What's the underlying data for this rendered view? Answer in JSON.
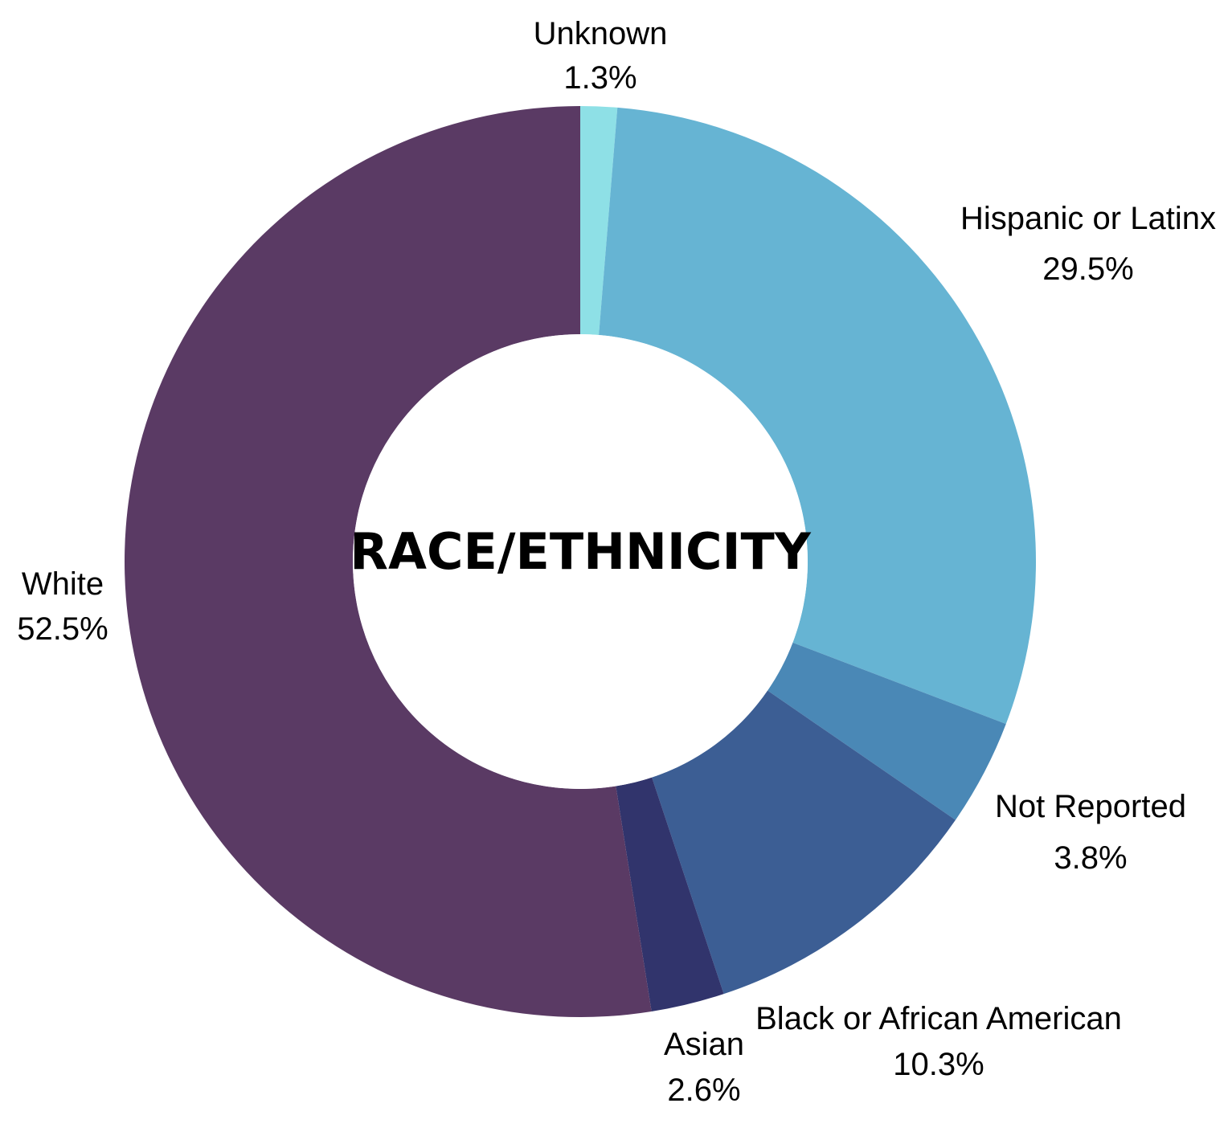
{
  "chart_data": {
    "type": "pie",
    "title": "RACE/ETHNICITY",
    "slices": [
      {
        "label": "Unknown",
        "value": 1.3,
        "value_label": "1.3%",
        "color": "#8ee0e6"
      },
      {
        "label": "Hispanic or Latinx",
        "value": 29.5,
        "value_label": "29.5%",
        "color": "#66b4d3"
      },
      {
        "label": "Not Reported",
        "value": 3.8,
        "value_label": "3.8%",
        "color": "#4a88b6"
      },
      {
        "label": "Black or African American",
        "value": 10.3,
        "value_label": "10.3%",
        "color": "#3c5e94"
      },
      {
        "label": "Asian",
        "value": 2.6,
        "value_label": "2.6%",
        "color": "#31346c"
      },
      {
        "label": "White",
        "value": 52.5,
        "value_label": "52.5%",
        "color": "#5a3a64"
      }
    ],
    "donut": true,
    "start_angle": "12 o'clock",
    "direction": "clockwise"
  }
}
